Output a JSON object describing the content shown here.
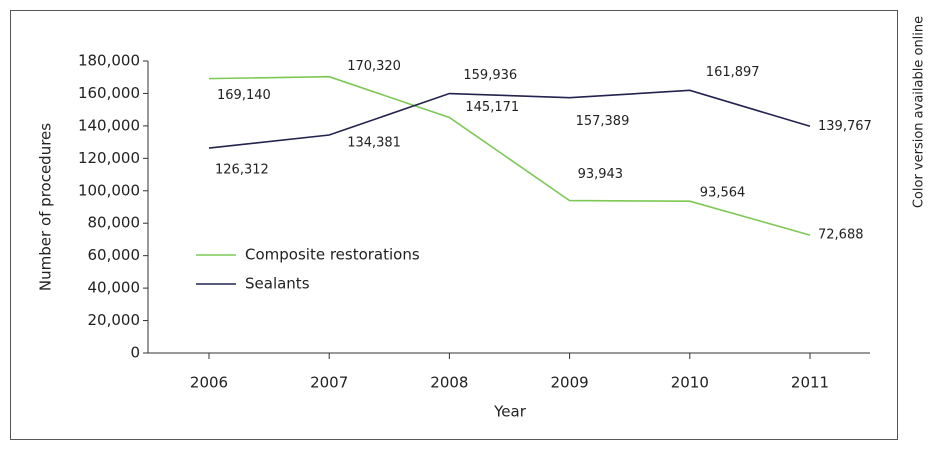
{
  "chart_data": {
    "type": "line",
    "x_label": "Year",
    "y_label": "Number of procedures",
    "annotation": "Color version available online",
    "categories": [
      "2006",
      "2007",
      "2008",
      "2009",
      "2010",
      "2011"
    ],
    "series": [
      {
        "name": "Composite restorations",
        "color": "#7dc854",
        "values": [
          169140,
          170320,
          145171,
          93943,
          93564,
          72688
        ],
        "value_labels": [
          "169,140",
          "170,320",
          "145,171",
          "93,943",
          "93,564",
          "72,688"
        ]
      },
      {
        "name": "Sealants",
        "color": "#23234d",
        "values": [
          126312,
          134381,
          159936,
          157389,
          161897,
          139767
        ],
        "value_labels": [
          "126,312",
          "134,381",
          "159,936",
          "157,389",
          "161,897",
          "139,767"
        ]
      }
    ],
    "ylim": [
      0,
      180000
    ],
    "yticks": [
      0,
      {
        "value": 20000,
        "label": "20,000"
      },
      {
        "value": 40000,
        "label": "40,000"
      },
      {
        "value": 60000,
        "label": "60,000"
      },
      {
        "value": 80000,
        "label": "80,000"
      },
      {
        "value": 100000,
        "label": "100,000"
      },
      {
        "value": 120000,
        "label": "120,000"
      },
      {
        "value": 140000,
        "label": "140,000"
      },
      {
        "value": 160000,
        "label": "160,000"
      },
      {
        "value": 180000,
        "label": "180,000"
      }
    ],
    "grid": false
  }
}
